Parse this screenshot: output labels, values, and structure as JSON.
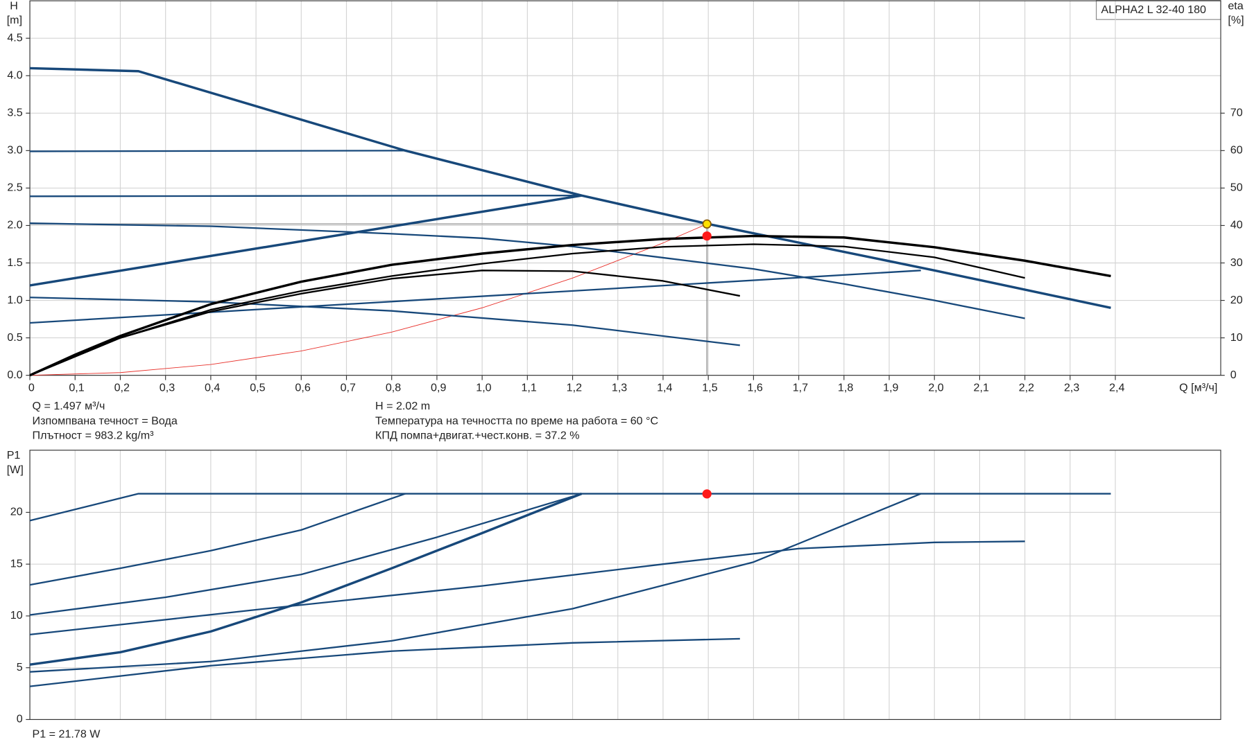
{
  "chart_data": [
    {
      "type": "line",
      "title": "ALPHA2 L 32-40 180",
      "y_label": "H",
      "y_unit": "[m]",
      "y2_label": "eta",
      "y2_unit": "[%]",
      "x_label": "Q [м³/ч]",
      "xlim": [
        0,
        2.633
      ],
      "ylim": [
        0,
        5
      ],
      "y2lim": [
        0,
        100
      ],
      "grid": true,
      "xticks": [
        0,
        {
          "value": 0.1,
          "label": "0,1"
        },
        {
          "value": 0.2,
          "label": "0,2"
        },
        {
          "value": 0.3,
          "label": "0,3"
        },
        {
          "value": 0.4,
          "label": "0,4"
        },
        {
          "value": 0.5,
          "label": "0,5"
        },
        {
          "value": 0.6,
          "label": "0,6"
        },
        {
          "value": 0.7,
          "label": "0,7"
        },
        {
          "value": 0.8,
          "label": "0,8"
        },
        {
          "value": 0.9,
          "label": "0,9"
        },
        {
          "value": 1.0,
          "label": "1,0"
        },
        {
          "value": 1.1,
          "label": "1,1"
        },
        {
          "value": 1.2,
          "label": "1,2"
        },
        {
          "value": 1.3,
          "label": "1,3"
        },
        {
          "value": 1.4,
          "label": "1,4"
        },
        {
          "value": 1.5,
          "label": "1,5"
        },
        {
          "value": 1.6,
          "label": "1,6"
        },
        {
          "value": 1.7,
          "label": "1,7"
        },
        {
          "value": 1.8,
          "label": "1,8"
        },
        {
          "value": 1.9,
          "label": "1,9"
        },
        {
          "value": 2.0,
          "label": "2,0"
        },
        {
          "value": 2.1,
          "label": "2,1"
        },
        {
          "value": 2.2,
          "label": "2,2"
        },
        {
          "value": 2.3,
          "label": "2,3"
        },
        {
          "value": 2.4,
          "label": "2,4"
        }
      ],
      "yticks": [
        {
          "value": 0,
          "label": "0.0"
        },
        0.5,
        {
          "value": 1,
          "label": "1.0"
        },
        1.5,
        {
          "value": 2,
          "label": "2.0"
        },
        2.5,
        {
          "value": 3,
          "label": "3.0"
        },
        3.5,
        {
          "value": 4,
          "label": "4.0"
        },
        4.5
      ],
      "y2ticks": [
        0,
        10,
        20,
        30,
        40,
        50,
        60,
        70
      ],
      "series": [
        {
          "color": "#e8302a",
          "thin": true,
          "x": [
            0,
            0.2,
            0.4,
            0.6,
            0.8,
            1.0,
            1.2,
            1.4,
            1.497
          ],
          "values": [
            0,
            0.036,
            0.144,
            0.325,
            0.577,
            0.901,
            1.298,
            1.767,
            2.02
          ]
        },
        {
          "color": "#17487a",
          "x": [
            0,
            0.4,
            0.8,
            1.0,
            1.2,
            1.4,
            1.6,
            1.8,
            2.0,
            2.2
          ],
          "values": [
            2.03,
            1.99,
            1.89,
            1.83,
            1.72,
            1.57,
            1.42,
            1.22,
            1.0,
            0.76
          ]
        },
        {
          "color": "#17487a",
          "x": [
            0,
            0.4,
            0.8,
            1.2,
            1.57
          ],
          "values": [
            1.04,
            0.98,
            0.86,
            0.67,
            0.4
          ]
        },
        {
          "color": "#17487a",
          "x": [
            0,
            1.97
          ],
          "values": [
            0.7,
            1.4
          ]
        },
        {
          "color": "#17487a",
          "x": [
            0,
            0.83
          ],
          "values": [
            2.99,
            3.0
          ]
        },
        {
          "color": "#17487a",
          "x": [
            0,
            1.22
          ],
          "values": [
            2.39,
            2.4
          ]
        },
        {
          "color": "#17487a",
          "bold": true,
          "x": [
            0,
            1.22
          ],
          "values": [
            1.2,
            2.4
          ]
        },
        {
          "color": "#17487a",
          "bold": true,
          "x": [
            0,
            0.24,
            0.83,
            1.22,
            1.5,
            2.0,
            2.39
          ],
          "values": [
            4.1,
            4.06,
            3.0,
            2.4,
            2.02,
            1.4,
            0.9
          ]
        },
        {
          "color": "#000000",
          "axis": "y2",
          "x": [
            0,
            0.2,
            0.4,
            0.6,
            0.8,
            1.0,
            1.2,
            1.4,
            1.57
          ],
          "values": [
            0,
            10,
            17,
            21.8,
            25.8,
            28,
            27.8,
            25.2,
            21.2
          ]
        },
        {
          "color": "#000000",
          "axis": "y2",
          "x": [
            0,
            0.2,
            0.4,
            0.6,
            0.8,
            1.0,
            1.2,
            1.4,
            1.6,
            1.8,
            2.0,
            2.2
          ],
          "values": [
            0,
            10,
            17.5,
            22.5,
            26.5,
            29.8,
            32.5,
            34.3,
            35,
            34.4,
            31.5,
            26
          ]
        },
        {
          "color": "#000000",
          "axis": "y2",
          "bold": true,
          "x": [
            0,
            0.1,
            0.2,
            0.4,
            0.6,
            0.8,
            1.0,
            1.2,
            1.4,
            1.6,
            1.8,
            2.0,
            2.2,
            2.39
          ],
          "values": [
            0,
            5.5,
            10.5,
            19,
            25,
            29.5,
            32.5,
            34.8,
            36.4,
            37.2,
            36.8,
            34.2,
            30.6,
            26.5
          ]
        }
      ],
      "markers": [
        {
          "x": 1.497,
          "y": 37.2,
          "axis": "y2",
          "color": "#ff1a1a"
        },
        {
          "x": 1.497,
          "y": 2.02,
          "color": "#ffe000",
          "stroke": "#8a5a00",
          "guides": true
        }
      ],
      "notes": [
        "Q = 1.497 м³/ч",
        "Изпомпвана течност = Вода",
        "Плътност = 983.2 kg/m³",
        "H = 2.02 m",
        "Температура на течността по време на работа = 60 °C",
        "КПД помпа+двигат.+чест.конв. = 37.2 %"
      ]
    },
    {
      "type": "line",
      "y_label": "P1",
      "y_unit": "[W]",
      "xlim": [
        0,
        2.633
      ],
      "ylim": [
        0,
        26
      ],
      "grid": true,
      "yticks": [
        0,
        5,
        10,
        15,
        20
      ],
      "series": [
        {
          "color": "#17487a",
          "x": [
            0,
            0.24,
            2.39
          ],
          "values": [
            19.2,
            21.8,
            21.8
          ]
        },
        {
          "color": "#17487a",
          "x": [
            0,
            0.2,
            0.4,
            0.6,
            0.83
          ],
          "values": [
            13,
            14.6,
            16.3,
            18.3,
            21.8
          ]
        },
        {
          "color": "#17487a",
          "x": [
            0,
            0.3,
            0.6,
            0.9,
            1.22
          ],
          "values": [
            10.1,
            11.8,
            14,
            17.6,
            21.8
          ]
        },
        {
          "color": "#17487a",
          "bold": true,
          "x": [
            0,
            0.2,
            0.4,
            0.6,
            0.8,
            1.0,
            1.22
          ],
          "values": [
            5.3,
            6.5,
            8.5,
            11.3,
            14.6,
            18,
            21.8
          ]
        },
        {
          "color": "#17487a",
          "x": [
            0,
            0.5,
            1.0,
            1.4,
            1.7,
            2.0,
            2.2
          ],
          "values": [
            8.2,
            10.6,
            12.9,
            15,
            16.5,
            17.1,
            17.2
          ]
        },
        {
          "color": "#17487a",
          "x": [
            0,
            0.4,
            0.8,
            1.2,
            1.6,
            1.97
          ],
          "values": [
            4.6,
            5.6,
            7.6,
            10.7,
            15.2,
            21.8
          ]
        },
        {
          "color": "#17487a",
          "x": [
            0,
            0.4,
            0.8,
            1.2,
            1.57
          ],
          "values": [
            3.2,
            5.2,
            6.6,
            7.4,
            7.8
          ]
        }
      ],
      "markers": [
        {
          "x": 1.497,
          "y": 21.78,
          "color": "#ff1a1a"
        }
      ],
      "notes": [
        "P1 = 21.78 W"
      ]
    }
  ]
}
